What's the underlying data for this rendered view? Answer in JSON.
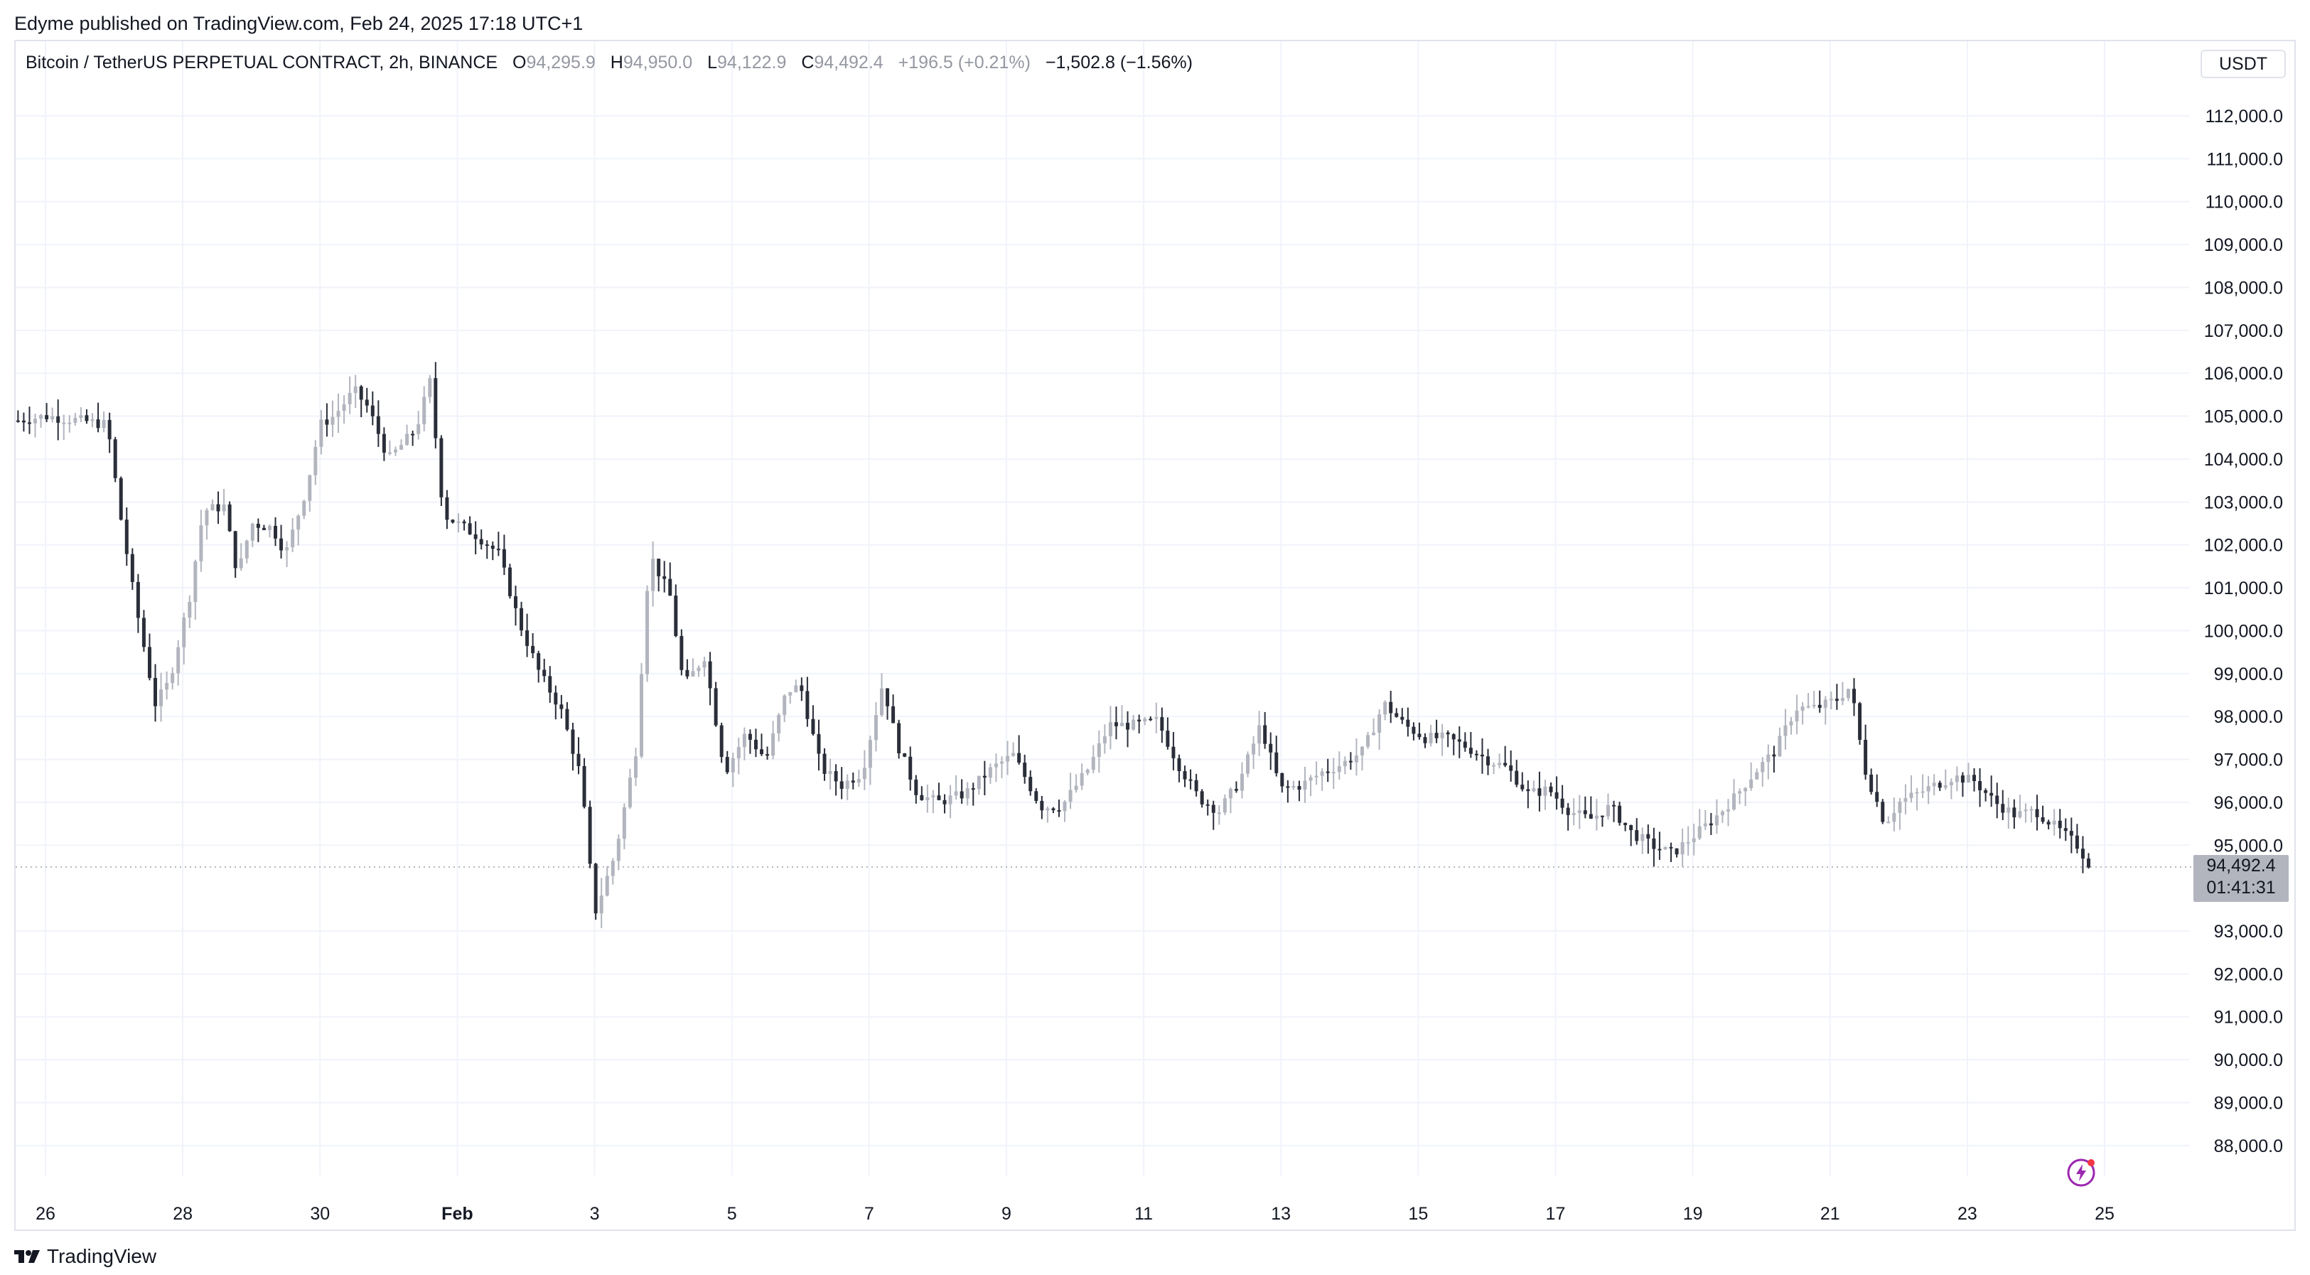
{
  "header": {
    "published": "Edyme published on TradingView.com, Feb 24, 2025 17:18 UTC+1"
  },
  "legend": {
    "symbol": "Bitcoin / TetherUS PERPETUAL CONTRACT, 2h, BINANCE",
    "o_label": "O",
    "o_value": "94,295.9",
    "h_label": "H",
    "h_value": "94,950.0",
    "l_label": "L",
    "l_value": "94,122.9",
    "c_label": "C",
    "c_value": "94,492.4",
    "change": "+196.5 (+0.21%)",
    "change2": "−1,502.8 (−1.56%)"
  },
  "currency": "USDT",
  "price_tag": {
    "price": "94,492.4",
    "countdown": "01:41:31"
  },
  "brand": {
    "name": "TradingView",
    "icon": "tradingview-logo-icon"
  },
  "icons": {
    "flash": "flash-icon"
  },
  "colors": {
    "up": "#b2b5be",
    "down": "#2a2e39",
    "grid": "#f0f3fa",
    "accent": "#9c27b0"
  },
  "chart_data": {
    "type": "candlestick",
    "title": "Bitcoin / TetherUS PERPETUAL CONTRACT, 2h, BINANCE",
    "ylabel": "USDT",
    "ylim": [
      87000,
      113000
    ],
    "y_ticks": [
      "88,000.0",
      "89,000.0",
      "90,000.0",
      "91,000.0",
      "92,000.0",
      "93,000.0",
      "95,000.0",
      "96,000.0",
      "97,000.0",
      "98,000.0",
      "99,000.0",
      "100,000.0",
      "101,000.0",
      "102,000.0",
      "103,000.0",
      "104,000.0",
      "105,000.0",
      "106,000.0",
      "107,000.0",
      "108,000.0",
      "109,000.0",
      "110,000.0",
      "111,000.0",
      "112,000.0"
    ],
    "x_ticks": [
      {
        "label": "26",
        "day": 26
      },
      {
        "label": "28",
        "day": 28
      },
      {
        "label": "30",
        "day": 30
      },
      {
        "label": "Feb",
        "day": 32
      },
      {
        "label": "3",
        "day": 34
      },
      {
        "label": "5",
        "day": 36
      },
      {
        "label": "7",
        "day": 38
      },
      {
        "label": "9",
        "day": 40
      },
      {
        "label": "11",
        "day": 42
      },
      {
        "label": "13",
        "day": 44
      },
      {
        "label": "15",
        "day": 46
      },
      {
        "label": "17",
        "day": 48
      },
      {
        "label": "19",
        "day": 50
      },
      {
        "label": "21",
        "day": 52
      },
      {
        "label": "23",
        "day": 54
      },
      {
        "label": "25",
        "day": 56
      }
    ],
    "last_price": 94492.4,
    "series_path": [
      [
        25.6,
        104900
      ],
      [
        26.0,
        105000
      ],
      [
        26.5,
        104900
      ],
      [
        26.9,
        104800
      ],
      [
        27.1,
        102600
      ],
      [
        27.3,
        100700
      ],
      [
        27.6,
        98300
      ],
      [
        27.8,
        98800
      ],
      [
        28.1,
        100800
      ],
      [
        28.3,
        102800
      ],
      [
        28.6,
        102900
      ],
      [
        28.8,
        101300
      ],
      [
        29.0,
        102500
      ],
      [
        29.3,
        102400
      ],
      [
        29.5,
        101800
      ],
      [
        29.8,
        103300
      ],
      [
        30.0,
        104800
      ],
      [
        30.2,
        105000
      ],
      [
        30.5,
        105600
      ],
      [
        30.7,
        105200
      ],
      [
        31.0,
        104000
      ],
      [
        31.4,
        104700
      ],
      [
        31.6,
        105800
      ],
      [
        31.8,
        102700
      ],
      [
        32.0,
        102500
      ],
      [
        32.3,
        102200
      ],
      [
        32.6,
        101800
      ],
      [
        32.9,
        100200
      ],
      [
        33.2,
        99000
      ],
      [
        33.5,
        98200
      ],
      [
        33.8,
        96600
      ],
      [
        34.0,
        93400
      ],
      [
        34.3,
        94800
      ],
      [
        34.6,
        97200
      ],
      [
        34.8,
        101800
      ],
      [
        35.1,
        100800
      ],
      [
        35.3,
        98700
      ],
      [
        35.6,
        99400
      ],
      [
        35.9,
        96700
      ],
      [
        36.2,
        97600
      ],
      [
        36.5,
        97000
      ],
      [
        36.8,
        98600
      ],
      [
        37.0,
        98700
      ],
      [
        37.3,
        96800
      ],
      [
        37.6,
        96400
      ],
      [
        37.9,
        96700
      ],
      [
        38.2,
        98800
      ],
      [
        38.4,
        97400
      ],
      [
        38.7,
        96200
      ],
      [
        39.0,
        96000
      ],
      [
        39.4,
        96200
      ],
      [
        39.8,
        96800
      ],
      [
        40.1,
        97100
      ],
      [
        40.5,
        95900
      ],
      [
        40.8,
        95900
      ],
      [
        41.2,
        96800
      ],
      [
        41.5,
        97800
      ],
      [
        41.9,
        97800
      ],
      [
        42.2,
        97900
      ],
      [
        42.5,
        96900
      ],
      [
        42.8,
        96100
      ],
      [
        43.1,
        95800
      ],
      [
        43.4,
        96500
      ],
      [
        43.7,
        97800
      ],
      [
        44.0,
        96300
      ],
      [
        44.3,
        96400
      ],
      [
        44.6,
        96700
      ],
      [
        44.9,
        96900
      ],
      [
        45.2,
        97200
      ],
      [
        45.5,
        98300
      ],
      [
        45.8,
        97800
      ],
      [
        46.1,
        97500
      ],
      [
        46.4,
        97500
      ],
      [
        46.7,
        97300
      ],
      [
        47.0,
        97000
      ],
      [
        47.3,
        96800
      ],
      [
        47.6,
        96200
      ],
      [
        47.9,
        96300
      ],
      [
        48.2,
        95800
      ],
      [
        48.5,
        95600
      ],
      [
        48.8,
        95900
      ],
      [
        49.1,
        95300
      ],
      [
        49.4,
        95000
      ],
      [
        49.7,
        94800
      ],
      [
        50.0,
        95200
      ],
      [
        50.3,
        95600
      ],
      [
        50.6,
        96100
      ],
      [
        50.9,
        96700
      ],
      [
        51.2,
        97200
      ],
      [
        51.5,
        98200
      ],
      [
        51.8,
        98200
      ],
      [
        52.1,
        98400
      ],
      [
        52.3,
        98700
      ],
      [
        52.5,
        96800
      ],
      [
        52.8,
        95500
      ],
      [
        53.0,
        96000
      ],
      [
        53.4,
        96300
      ],
      [
        53.8,
        96600
      ],
      [
        54.1,
        96500
      ],
      [
        54.4,
        96000
      ],
      [
        54.7,
        95700
      ],
      [
        55.0,
        95800
      ],
      [
        55.3,
        95400
      ],
      [
        55.6,
        95000
      ],
      [
        55.8,
        94500
      ]
    ]
  }
}
